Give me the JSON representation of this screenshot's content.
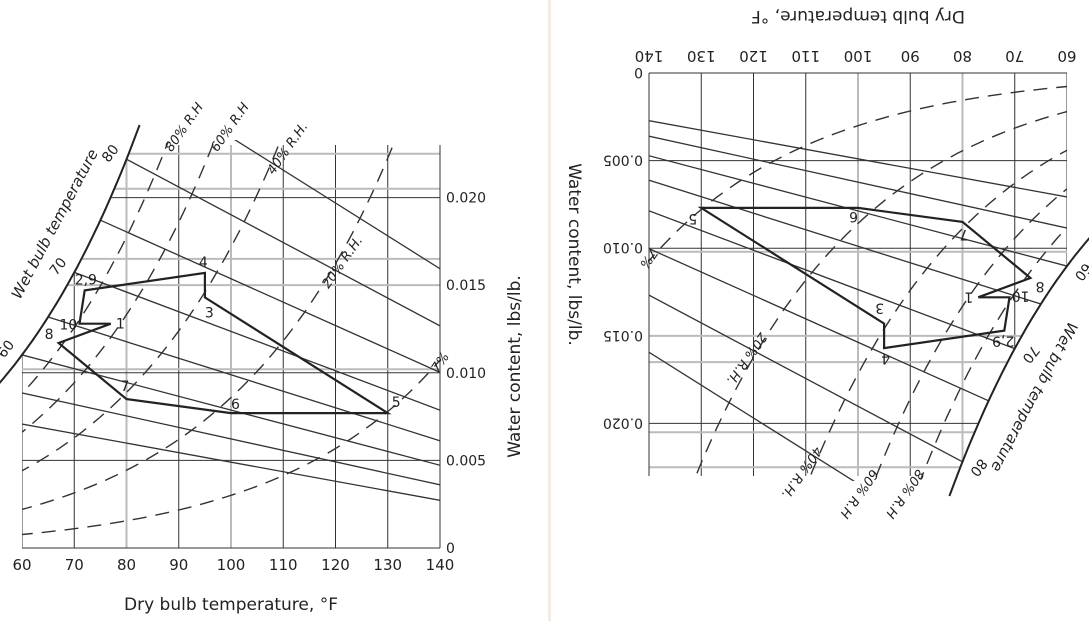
{
  "chart_data": [
    {
      "type": "scatter",
      "title": "",
      "xlabel": "Dry bulb temperature, °F",
      "ylabel": "Water content, lbs/lb.",
      "wetbulb_label": "Wet bulb temperature",
      "xlim": [
        60,
        140
      ],
      "ylim": [
        0,
        0.023
      ],
      "x_ticks": [
        "60",
        "70",
        "80",
        "90",
        "100",
        "110",
        "120",
        "130",
        "140"
      ],
      "y_ticks": [
        "0",
        "0.005",
        "0.010",
        "0.015",
        "0.020"
      ],
      "wetbulb_ticks": [
        "60",
        "70",
        "80"
      ],
      "rh_curves": [
        "80% R.H",
        "60% R.H",
        "40% R.H.",
        "20% R.H.",
        "7%"
      ],
      "process_path": [
        {
          "label": "1",
          "x": 77,
          "y": 0.0128
        },
        {
          "label": "10",
          "x": 71,
          "y": 0.0128
        },
        {
          "label": "2,9",
          "x": 72,
          "y": 0.0147
        },
        {
          "label": "4",
          "x": 95,
          "y": 0.0157
        },
        {
          "label": "3",
          "x": 95,
          "y": 0.0143
        },
        {
          "label": "5",
          "x": 130,
          "y": 0.0077
        },
        {
          "label": "6",
          "x": 100,
          "y": 0.0077
        },
        {
          "label": "7",
          "x": 80,
          "y": 0.0085
        },
        {
          "label": "8",
          "x": 67,
          "y": 0.0117
        }
      ]
    },
    {
      "type": "scatter",
      "title": "",
      "xlabel": "Water content, lbs/lb.",
      "ylabel": "Dry bulb temperature, °F",
      "wetbulb_label": "Wet bulb temperature",
      "orientation": "rotated 180°",
      "xlim": [
        0,
        0.023
      ],
      "ylim": [
        60,
        140
      ],
      "x_ticks": [
        "0",
        "0.005",
        "0.010",
        "0.015",
        "0.020"
      ],
      "y_ticks": [
        "60",
        "70",
        "80",
        "90",
        "100",
        "110",
        "120",
        "130",
        "140"
      ],
      "wetbulb_ticks": [
        "60",
        "70",
        "80"
      ],
      "rh_curves": [
        "80% R.H",
        "60% R.H",
        "40% R.H.",
        "20% R.H.",
        "7%"
      ],
      "process_path": [
        {
          "label": "1",
          "x": 0.0128,
          "y": 77
        },
        {
          "label": "10",
          "x": 0.0128,
          "y": 71
        },
        {
          "label": "2,9",
          "x": 0.0147,
          "y": 72
        },
        {
          "label": "4",
          "x": 0.0157,
          "y": 95
        },
        {
          "label": "3",
          "x": 0.0143,
          "y": 95
        },
        {
          "label": "5",
          "x": 0.0077,
          "y": 130
        },
        {
          "label": "6",
          "x": 0.0077,
          "y": 100
        },
        {
          "label": "7",
          "x": 0.0085,
          "y": 80
        },
        {
          "label": "8",
          "x": 0.0117,
          "y": 67
        }
      ]
    }
  ]
}
